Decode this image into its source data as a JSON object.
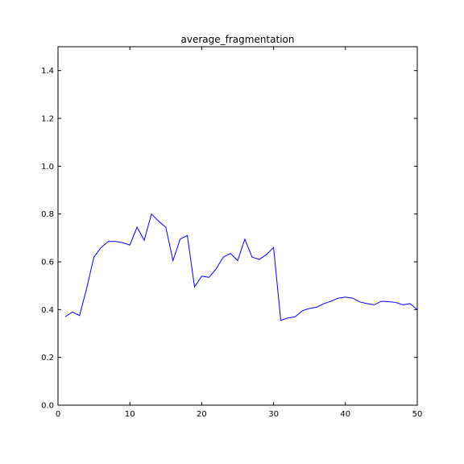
{
  "chart_data": {
    "type": "line",
    "title": "average_fragmentation",
    "xlabel": "",
    "ylabel": "",
    "xlim": [
      0,
      50
    ],
    "ylim": [
      0.0,
      1.5
    ],
    "x_ticks": [
      0,
      10,
      20,
      30,
      40,
      50
    ],
    "y_ticks": [
      0.0,
      0.2,
      0.4,
      0.6,
      0.8,
      1.0,
      1.2,
      1.4
    ],
    "grid": false,
    "line_color": "#0000ff",
    "series": [
      {
        "x": [
          1,
          2,
          3,
          4,
          5,
          6,
          7,
          8,
          9,
          10,
          11,
          12,
          13,
          14,
          15,
          16,
          17,
          18,
          19,
          20,
          21,
          22,
          23,
          24,
          25,
          26,
          27,
          28,
          29,
          30,
          31,
          32,
          33,
          34,
          35,
          36,
          37,
          38,
          39,
          40,
          41,
          42,
          43,
          44,
          45,
          46,
          47,
          48,
          49,
          50
        ],
        "values": [
          0.37,
          0.39,
          0.375,
          0.49,
          0.62,
          0.66,
          0.685,
          0.685,
          0.68,
          0.67,
          0.745,
          0.69,
          0.8,
          0.77,
          0.745,
          0.605,
          0.695,
          0.71,
          0.495,
          0.54,
          0.535,
          0.57,
          0.62,
          0.635,
          0.605,
          0.695,
          0.62,
          0.61,
          0.63,
          0.66,
          0.355,
          0.365,
          0.37,
          0.395,
          0.405,
          0.41,
          0.425,
          0.435,
          0.448,
          0.452,
          0.448,
          0.432,
          0.425,
          0.42,
          0.435,
          0.433,
          0.43,
          0.42,
          0.425,
          0.4
        ]
      }
    ]
  }
}
